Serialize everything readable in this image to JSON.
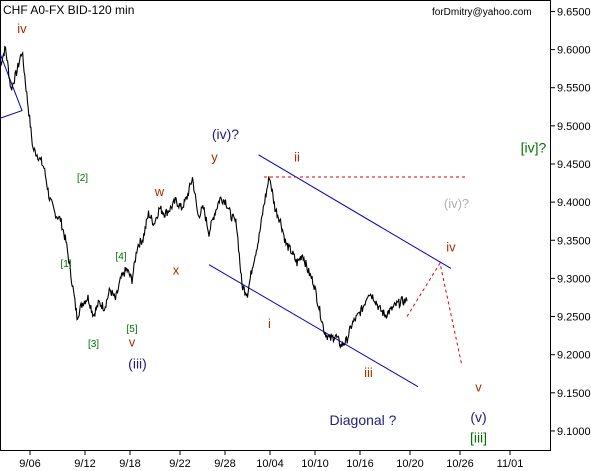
{
  "chart_data": {
    "type": "line",
    "title": "CHF A0-FX BID-120 min",
    "watermark": "forDmitry@yahoo.com",
    "colors": {
      "price": "#000000",
      "trendline": "#0000c0",
      "target": "#e00000",
      "green": "#007000",
      "brown": "#a03000",
      "navy": "#202080",
      "gray": "#b0b0b0",
      "red": "#c01010"
    },
    "xticks": [
      "9/06",
      "9/12",
      "9/18",
      "9/22",
      "9/28",
      "10/04",
      "10/10",
      "10/16",
      "10/20",
      "10/26",
      "11/01"
    ],
    "yticks": [
      9.1,
      9.15,
      9.2,
      9.25,
      9.3,
      9.35,
      9.4,
      9.45,
      9.5,
      9.55,
      9.6,
      9.65
    ],
    "ylim": [
      9.075,
      9.665
    ],
    "xlim": [
      0,
      100
    ],
    "grid": false,
    "series": [
      {
        "x": [
          0,
          1,
          2,
          3,
          4,
          5,
          6,
          7,
          8,
          9,
          10,
          11,
          12,
          13,
          14,
          15,
          16,
          17,
          18,
          19,
          20,
          21,
          22,
          23,
          24,
          25,
          26,
          27,
          28,
          29,
          30,
          31,
          32,
          33,
          34,
          35,
          36,
          37,
          38,
          39,
          40,
          41,
          42,
          43,
          44,
          45,
          46,
          47,
          48,
          49,
          50,
          51,
          52,
          53,
          54,
          55,
          56,
          57,
          58,
          59,
          60,
          61,
          62,
          63,
          64,
          65,
          66,
          67,
          68,
          69,
          70,
          71,
          72,
          73,
          74
        ],
        "values": [
          9.58,
          9.602,
          9.548,
          9.57,
          9.598,
          9.533,
          9.47,
          9.46,
          9.445,
          9.405,
          9.385,
          9.377,
          9.348,
          9.3,
          9.25,
          9.268,
          9.275,
          9.252,
          9.268,
          9.262,
          9.285,
          9.272,
          9.3,
          9.312,
          9.298,
          9.343,
          9.352,
          9.385,
          9.372,
          9.392,
          9.385,
          9.392,
          9.402,
          9.392,
          9.406,
          9.432,
          9.382,
          9.392,
          9.36,
          9.385,
          9.405,
          9.402,
          9.382,
          9.372,
          9.29,
          9.28,
          9.32,
          9.35,
          9.397,
          9.434,
          9.392,
          9.375,
          9.345,
          9.335,
          9.32,
          9.332,
          9.31,
          9.295,
          9.262,
          9.23,
          9.22,
          9.225,
          9.212,
          9.218,
          9.24,
          9.25,
          9.262,
          9.282,
          9.275,
          9.26,
          9.252,
          9.258,
          9.265,
          9.27,
          9.27
        ]
      }
    ],
    "channel_upper": {
      "p1": [
        47,
        9.462
      ],
      "p2": [
        82,
        9.313
      ]
    },
    "channel_lower": {
      "p1": [
        38,
        9.318
      ],
      "p2": [
        76,
        9.158
      ]
    },
    "resistance": {
      "from": [
        48,
        9.433
      ],
      "to": [
        85,
        9.433
      ]
    },
    "projection": [
      [
        74,
        9.25
      ],
      [
        80,
        9.32
      ],
      [
        84,
        9.185
      ]
    ],
    "bottom_box": {
      "p1": [
        0,
        9.595
      ],
      "p2": [
        4,
        9.52
      ],
      "p3": [
        0,
        9.51
      ]
    },
    "annotations": [
      {
        "text": "iv",
        "x": 4,
        "y": 9.622,
        "color": "brown",
        "size": 13
      },
      {
        "text": "[2]",
        "x": 15,
        "y": 9.428,
        "color": "green",
        "size": 10
      },
      {
        "text": "[1]",
        "x": 12,
        "y": 9.315,
        "color": "green",
        "size": 10
      },
      {
        "text": "[4]",
        "x": 22,
        "y": 9.325,
        "color": "green",
        "size": 10
      },
      {
        "text": "[5]",
        "x": 24,
        "y": 9.23,
        "color": "green",
        "size": 10
      },
      {
        "text": "[3]",
        "x": 17,
        "y": 9.21,
        "color": "green",
        "size": 10
      },
      {
        "text": "v",
        "x": 24,
        "y": 9.211,
        "color": "brown",
        "size": 13
      },
      {
        "text": "(iii)",
        "x": 25,
        "y": 9.182,
        "color": "navy",
        "size": 14
      },
      {
        "text": "w",
        "x": 29,
        "y": 9.408,
        "color": "brown",
        "size": 13
      },
      {
        "text": "x",
        "x": 32,
        "y": 9.305,
        "color": "brown",
        "size": 13
      },
      {
        "text": "(iv)?",
        "x": 41,
        "y": 9.483,
        "color": "navy",
        "size": 14
      },
      {
        "text": "y",
        "x": 39,
        "y": 9.453,
        "color": "brown",
        "size": 13
      },
      {
        "text": "ii",
        "x": 54,
        "y": 9.453,
        "color": "brown",
        "size": 13
      },
      {
        "text": "i",
        "x": 49,
        "y": 9.235,
        "color": "brown",
        "size": 13
      },
      {
        "text": "iii",
        "x": 67,
        "y": 9.171,
        "color": "brown",
        "size": 13
      },
      {
        "text": "(iv)?",
        "x": 83,
        "y": 9.392,
        "color": "gray",
        "size": 13
      },
      {
        "text": "iv",
        "x": 82,
        "y": 9.335,
        "color": "brown",
        "size": 13
      },
      {
        "text": "[iv]?",
        "x": 97,
        "y": 9.465,
        "color": "green",
        "size": 14
      },
      {
        "text": "Diagonal ?",
        "x": 66,
        "y": 9.108,
        "color": "navy",
        "size": 14
      },
      {
        "text": "v",
        "x": 87,
        "y": 9.152,
        "color": "brown",
        "size": 13
      },
      {
        "text": "(v)",
        "x": 87,
        "y": 9.112,
        "color": "navy",
        "size": 14
      },
      {
        "text": "[iii]",
        "x": 87,
        "y": 9.085,
        "color": "green",
        "size": 14
      }
    ]
  }
}
